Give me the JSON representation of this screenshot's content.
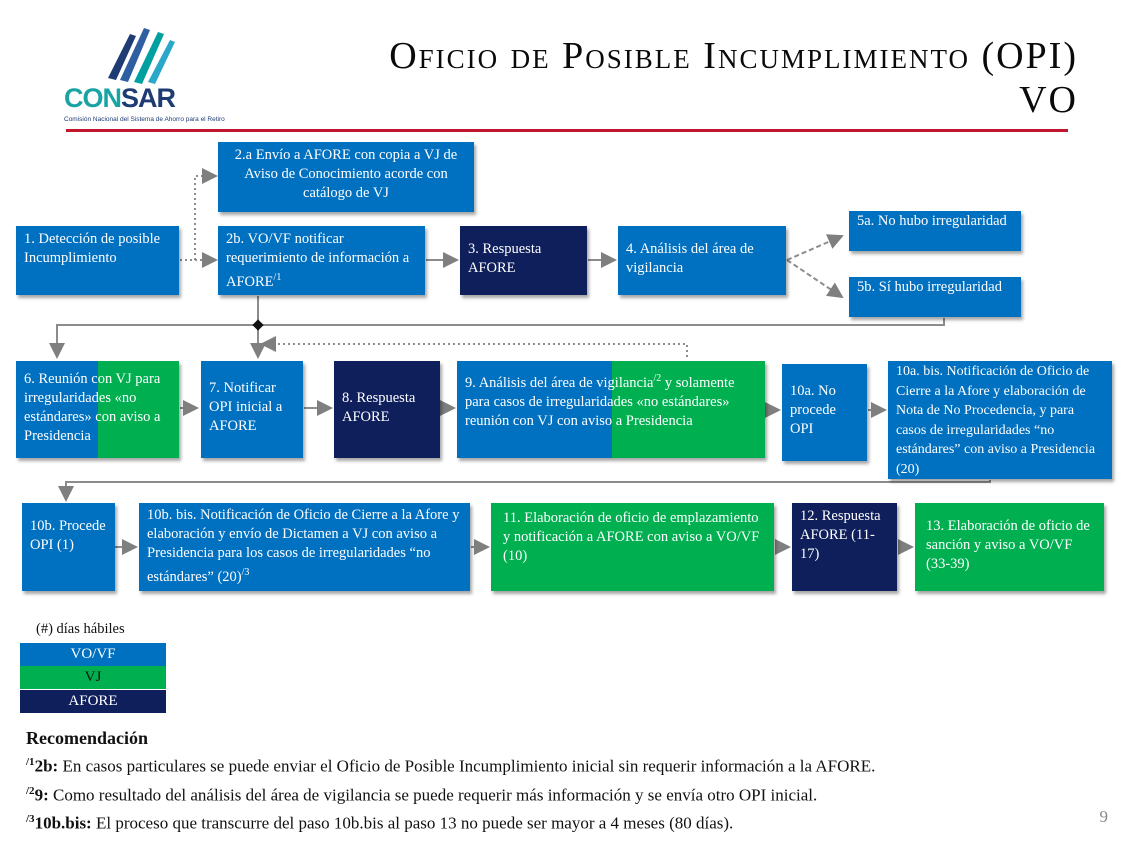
{
  "logo": {
    "brand_a": "CON",
    "brand_b": "SAR",
    "subtitle": "Comisión Nacional del Sistema de Ahorro para el Retiro"
  },
  "header": {
    "title_line1": "Oficio de Posible Incumplimiento (OPI)",
    "title_line2": "VO"
  },
  "boxes": {
    "b1": "1. Detección de posible Incumplimiento",
    "b2a": "2.a Envío a AFORE con copia a VJ de Aviso de Conocimiento acorde con catálogo de VJ",
    "b2b": "2b. VO/VF notificar requerimiento de información a AFORE",
    "b2b_sup": "/1",
    "b3": "3. Respuesta AFORE",
    "b4": "4. Análisis del área de vigilancia",
    "b5a": "5a. No hubo irregularidad",
    "b5b": "5b. Sí hubo irregularidad",
    "b6": "6. Reunión con VJ para irregularidades «no estándares» con aviso a Presidencia",
    "b7": "7. Notificar OPI inicial a AFORE",
    "b8": "8. Respuesta AFORE",
    "b9_a": "9. Análisis del área de vigilancia",
    "b9_sup": "/2",
    "b9_b": " y solamente para casos de irregularidades «no estándares» reunión con VJ con aviso a Presidencia",
    "b10a": "10a. No procede OPI",
    "b10abis": "10a. bis. Notificación de Oficio de Cierre a la Afore y elaboración de Nota de No Procedencia, y para casos de irregularidades “no estándares” con aviso a Presidencia (20)",
    "b10b": "10b. Procede OPI (1)",
    "b10bbis": "10b. bis. Notificación de Oficio de Cierre a la Afore y elaboración y envío de Dictamen a VJ con aviso a Presidencia para los casos de irregularidades “no estándares” (20)",
    "b10bbis_sup": "/3",
    "b11": "11. Elaboración de oficio de emplazamiento y notificación a AFORE con aviso a VO/VF (10)",
    "b12": "12. Respuesta AFORE (11-17)",
    "b13": "13. Elaboración de oficio de sanción y aviso a VO/VF (33-39)"
  },
  "legend": {
    "title": "(#) días hábiles",
    "items": [
      {
        "label": "VO/VF",
        "color": "#0070c0"
      },
      {
        "label": "VJ",
        "color": "#00b050"
      },
      {
        "label": "AFORE",
        "color": "#0f1f5c"
      }
    ]
  },
  "notes": {
    "heading": "Recomendación",
    "items": [
      {
        "sup": "/1",
        "key": "2b:",
        "text": " En casos particulares se puede enviar el Oficio de Posible Incumplimiento inicial sin requerir información a la AFORE."
      },
      {
        "sup": "/2",
        "key": "9:",
        "text": " Como resultado del análisis del área de vigilancia se puede requerir más información y se envía otro OPI inicial."
      },
      {
        "sup": "/3",
        "key": "10b.bis:",
        "text": " El proceso que transcurre del paso 10b.bis al paso 13 no puede ser mayor a 4 meses (80 días)."
      }
    ]
  },
  "page_number": "9"
}
